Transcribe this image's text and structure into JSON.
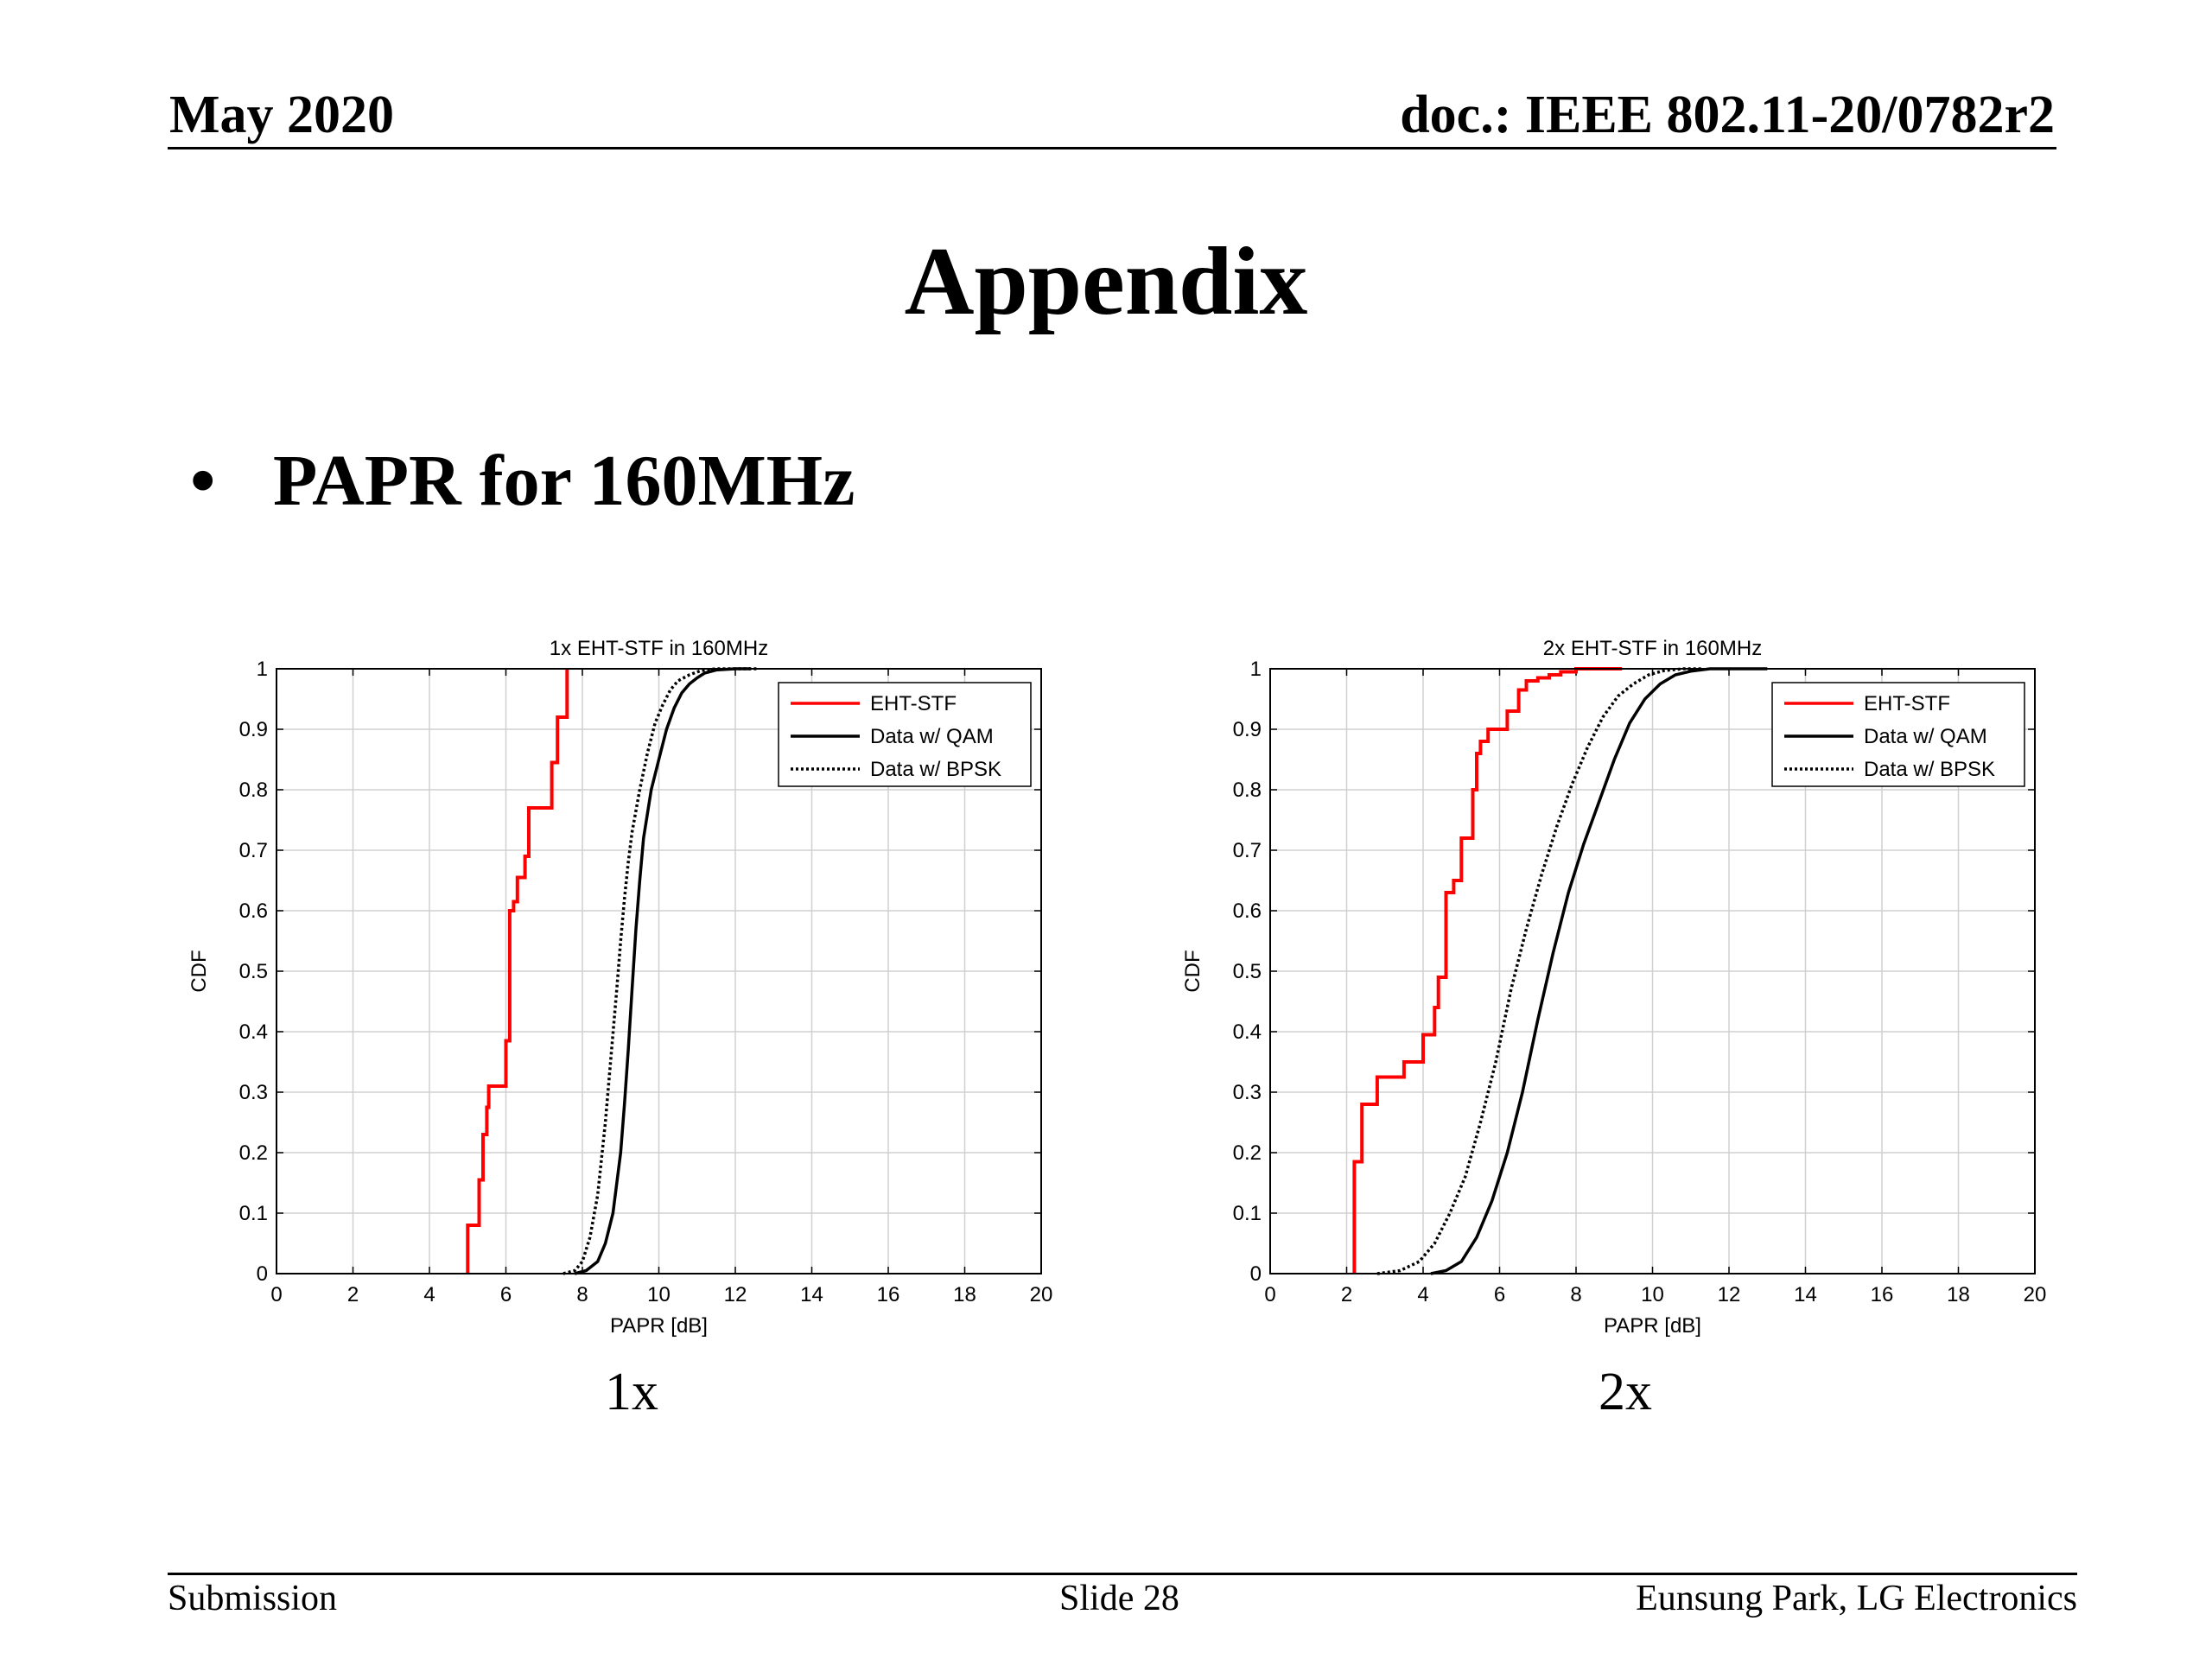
{
  "header": {
    "date": "May 2020",
    "doc": "doc.: IEEE 802.11-20/0782r2"
  },
  "slide": {
    "title": "Appendix",
    "bullet": "PAPR for 160MHz"
  },
  "captions": [
    "1x",
    "2x"
  ],
  "footer": {
    "left": "Submission",
    "center": "Slide 28",
    "right": "Eunsung Park, LG Electronics"
  },
  "colors": {
    "eht": "#ff0000",
    "qam": "#000000",
    "bpsk": "#000000",
    "grid": "#d0d0d0"
  },
  "chart_data": [
    {
      "type": "line",
      "title": "1x EHT-STF in 160MHz",
      "xlabel": "PAPR [dB]",
      "ylabel": "CDF",
      "xlim": [
        0,
        20
      ],
      "ylim": [
        0,
        1
      ],
      "xticks": [
        0,
        2,
        4,
        6,
        8,
        10,
        12,
        14,
        16,
        18,
        20
      ],
      "yticks": [
        0,
        0.1,
        0.2,
        0.3,
        0.4,
        0.5,
        0.6,
        0.7,
        0.8,
        0.9,
        1
      ],
      "grid": true,
      "legend_position": "top-right",
      "series": [
        {
          "name": "EHT-STF",
          "style": "step",
          "color": "#ff0000",
          "dash": "solid",
          "x": [
            5.0,
            5.0,
            5.3,
            5.3,
            5.4,
            5.4,
            5.5,
            5.5,
            5.55,
            5.55,
            6.0,
            6.0,
            6.1,
            6.1,
            6.2,
            6.2,
            6.3,
            6.3,
            6.5,
            6.5,
            6.6,
            6.6,
            7.2,
            7.2,
            7.35,
            7.35,
            7.6,
            7.6
          ],
          "y": [
            0.0,
            0.08,
            0.08,
            0.155,
            0.155,
            0.23,
            0.23,
            0.275,
            0.275,
            0.31,
            0.31,
            0.385,
            0.385,
            0.6,
            0.6,
            0.615,
            0.615,
            0.655,
            0.655,
            0.69,
            0.69,
            0.77,
            0.77,
            0.845,
            0.845,
            0.92,
            0.92,
            1.0
          ]
        },
        {
          "name": "Data w/ QAM",
          "style": "line",
          "color": "#000000",
          "dash": "solid",
          "x": [
            7.8,
            8.1,
            8.4,
            8.6,
            8.8,
            9.0,
            9.1,
            9.2,
            9.3,
            9.4,
            9.5,
            9.6,
            9.8,
            10.0,
            10.2,
            10.4,
            10.6,
            10.8,
            11.0,
            11.2,
            11.5,
            12.0,
            12.4
          ],
          "y": [
            0.0,
            0.005,
            0.02,
            0.05,
            0.1,
            0.2,
            0.28,
            0.37,
            0.47,
            0.57,
            0.65,
            0.72,
            0.8,
            0.85,
            0.9,
            0.935,
            0.96,
            0.975,
            0.985,
            0.993,
            0.998,
            1.0,
            1.0
          ]
        },
        {
          "name": "Data w/ BPSK",
          "style": "line",
          "color": "#000000",
          "dash": "dotted",
          "x": [
            7.5,
            7.8,
            8.0,
            8.2,
            8.4,
            8.6,
            8.75,
            8.9,
            9.0,
            9.1,
            9.2,
            9.3,
            9.5,
            9.7,
            9.9,
            10.1,
            10.3,
            10.5,
            10.8,
            11.1,
            11.5,
            12.0,
            12.6
          ],
          "y": [
            0.0,
            0.005,
            0.02,
            0.06,
            0.13,
            0.25,
            0.36,
            0.47,
            0.55,
            0.62,
            0.68,
            0.73,
            0.8,
            0.86,
            0.91,
            0.94,
            0.965,
            0.98,
            0.99,
            0.997,
            1.0,
            1.0,
            1.0
          ]
        }
      ]
    },
    {
      "type": "line",
      "title": "2x EHT-STF in 160MHz",
      "xlabel": "PAPR [dB]",
      "ylabel": "CDF",
      "xlim": [
        0,
        20
      ],
      "ylim": [
        0,
        1
      ],
      "xticks": [
        0,
        2,
        4,
        6,
        8,
        10,
        12,
        14,
        16,
        18,
        20
      ],
      "yticks": [
        0,
        0.1,
        0.2,
        0.3,
        0.4,
        0.5,
        0.6,
        0.7,
        0.8,
        0.9,
        1
      ],
      "grid": true,
      "legend_position": "top-right",
      "series": [
        {
          "name": "EHT-STF",
          "style": "step",
          "color": "#ff0000",
          "dash": "solid",
          "x": [
            2.2,
            2.2,
            2.4,
            2.4,
            2.8,
            2.8,
            3.5,
            3.5,
            4.0,
            4.0,
            4.3,
            4.3,
            4.4,
            4.4,
            4.6,
            4.6,
            4.8,
            4.8,
            5.0,
            5.0,
            5.3,
            5.3,
            5.4,
            5.4,
            5.5,
            5.5,
            5.7,
            5.7,
            6.2,
            6.2,
            6.5,
            6.5,
            6.7,
            6.7,
            7.0,
            7.0,
            7.3,
            7.3,
            7.6,
            7.6,
            8.0,
            8.0,
            9.2
          ],
          "y": [
            0.0,
            0.185,
            0.185,
            0.28,
            0.28,
            0.325,
            0.325,
            0.35,
            0.35,
            0.395,
            0.395,
            0.44,
            0.44,
            0.49,
            0.49,
            0.63,
            0.63,
            0.65,
            0.65,
            0.72,
            0.72,
            0.8,
            0.8,
            0.86,
            0.86,
            0.88,
            0.88,
            0.9,
            0.9,
            0.93,
            0.93,
            0.965,
            0.965,
            0.98,
            0.98,
            0.985,
            0.985,
            0.99,
            0.99,
            0.995,
            0.995,
            1.0,
            1.0
          ]
        },
        {
          "name": "Data w/ QAM",
          "style": "line",
          "color": "#000000",
          "dash": "solid",
          "x": [
            4.2,
            4.6,
            5.0,
            5.4,
            5.8,
            6.2,
            6.6,
            7.0,
            7.4,
            7.8,
            8.2,
            8.6,
            9.0,
            9.4,
            9.8,
            10.2,
            10.6,
            11.0,
            11.5,
            12.2,
            13.0
          ],
          "y": [
            0.0,
            0.005,
            0.02,
            0.06,
            0.12,
            0.2,
            0.3,
            0.42,
            0.53,
            0.63,
            0.71,
            0.78,
            0.85,
            0.91,
            0.95,
            0.975,
            0.99,
            0.996,
            1.0,
            1.0,
            1.0
          ]
        },
        {
          "name": "Data w/ BPSK",
          "style": "line",
          "color": "#000000",
          "dash": "dotted",
          "x": [
            2.8,
            3.4,
            3.9,
            4.3,
            4.7,
            5.1,
            5.5,
            5.9,
            6.3,
            6.7,
            7.1,
            7.5,
            7.9,
            8.3,
            8.7,
            9.1,
            9.5,
            9.9,
            10.3,
            10.8,
            11.3
          ],
          "y": [
            0.0,
            0.005,
            0.02,
            0.05,
            0.1,
            0.16,
            0.25,
            0.35,
            0.47,
            0.57,
            0.66,
            0.74,
            0.81,
            0.87,
            0.92,
            0.955,
            0.975,
            0.99,
            0.997,
            1.0,
            1.0
          ]
        }
      ]
    }
  ]
}
